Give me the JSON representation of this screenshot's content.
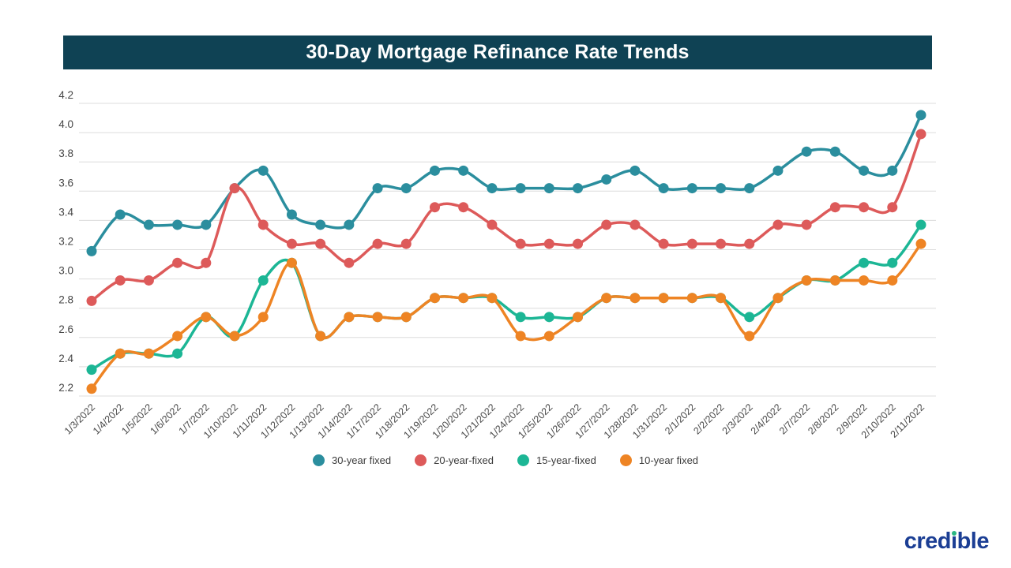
{
  "title": {
    "text": "30-Day Mortgage Refinance Rate Trends",
    "bg_color": "#0f4254",
    "text_color": "#ffffff"
  },
  "brand": {
    "name": "credible",
    "color": "#1b3e94",
    "i_dot_color": "#2bb783"
  },
  "axis": {
    "y_tick_labels": [
      "2.2",
      "2.4",
      "2.6",
      "2.8",
      "3.0",
      "3.2",
      "3.4",
      "3.6",
      "3.8",
      "4.0",
      "4.2"
    ],
    "grid_color": "#dcdcdc",
    "label_color": "#454545"
  },
  "chart_data": {
    "type": "line",
    "title": "30-Day Mortgage Refinance Rate Trends",
    "xlabel": "",
    "ylabel": "",
    "ylim": [
      2.2,
      4.2
    ],
    "ytick_step": 0.2,
    "grid": "horizontal",
    "legend_position": "bottom",
    "marker": "circle",
    "x": [
      "1/3/2022",
      "1/4/2022",
      "1/5/2022",
      "1/6/2022",
      "1/7/2022",
      "1/10/2022",
      "1/11/2022",
      "1/12/2022",
      "1/13/2022",
      "1/14/2022",
      "1/17/2022",
      "1/18/2022",
      "1/19/2022",
      "1/20/2022",
      "1/21/2022",
      "1/24/2022",
      "1/25/2022",
      "1/26/2022",
      "1/27/2022",
      "1/28/2022",
      "1/31/2022",
      "2/1/2022",
      "2/2/2022",
      "2/3/2022",
      "2/4/2022",
      "2/7/2022",
      "2/8/2022",
      "2/9/2022",
      "2/10/2022",
      "2/11/2022"
    ],
    "series": [
      {
        "name": "30-year fixed",
        "color": "#2b8e9e",
        "values": [
          3.19,
          3.44,
          3.37,
          3.37,
          3.37,
          3.62,
          3.74,
          3.44,
          3.37,
          3.37,
          3.62,
          3.62,
          3.74,
          3.74,
          3.62,
          3.62,
          3.62,
          3.62,
          3.68,
          3.74,
          3.62,
          3.62,
          3.62,
          3.62,
          3.74,
          3.87,
          3.87,
          3.74,
          3.74,
          4.12
        ]
      },
      {
        "name": "20-year-fixed",
        "color": "#dd5a5a",
        "values": [
          2.85,
          2.99,
          2.99,
          3.11,
          3.11,
          3.62,
          3.37,
          3.24,
          3.24,
          3.11,
          3.24,
          3.24,
          3.49,
          3.49,
          3.37,
          3.24,
          3.24,
          3.24,
          3.37,
          3.37,
          3.24,
          3.24,
          3.24,
          3.24,
          3.37,
          3.37,
          3.49,
          3.49,
          3.49,
          3.99
        ]
      },
      {
        "name": "15-year-fixed",
        "color": "#1cb695",
        "values": [
          2.38,
          2.49,
          2.49,
          2.49,
          2.74,
          2.61,
          2.99,
          3.11,
          2.61,
          2.74,
          2.74,
          2.74,
          2.87,
          2.87,
          2.87,
          2.74,
          2.74,
          2.74,
          2.87,
          2.87,
          2.87,
          2.87,
          2.87,
          2.74,
          2.87,
          2.99,
          2.99,
          3.11,
          3.11,
          3.37
        ]
      },
      {
        "name": "10-year fixed",
        "color": "#ee8424",
        "values": [
          2.25,
          2.49,
          2.49,
          2.61,
          2.74,
          2.61,
          2.74,
          3.11,
          2.61,
          2.74,
          2.74,
          2.74,
          2.87,
          2.87,
          2.87,
          2.61,
          2.61,
          2.74,
          2.87,
          2.87,
          2.87,
          2.87,
          2.87,
          2.61,
          2.87,
          2.99,
          2.99,
          2.99,
          2.99,
          3.24
        ]
      }
    ]
  }
}
